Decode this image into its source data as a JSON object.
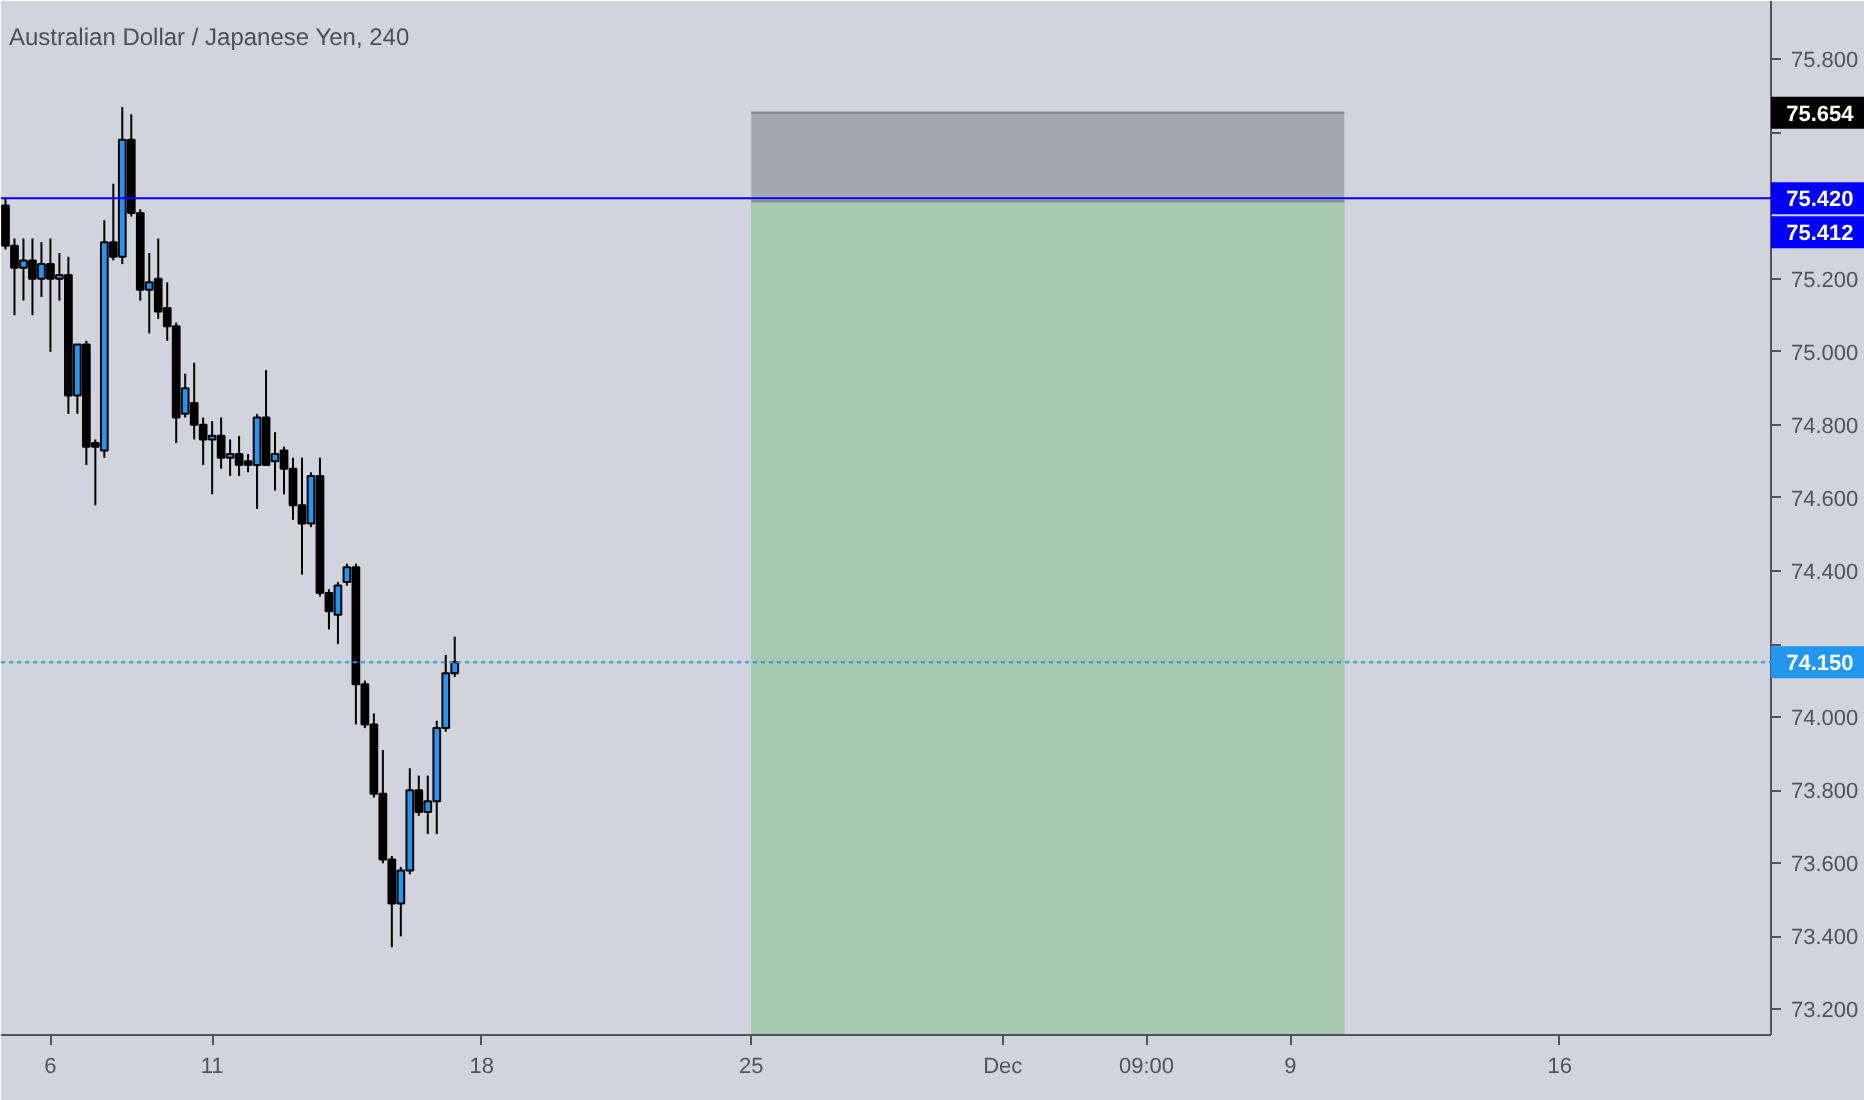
{
  "chart_data": {
    "type": "candlestick",
    "title": "Australian Dollar / Japanese Yen, 240",
    "categories": [
      null,
      null,
      null,
      null,
      null,
      "6",
      null,
      null,
      null,
      null,
      null,
      null,
      null,
      null,
      null,
      null,
      null,
      null,
      null,
      null,
      null,
      null,
      null,
      "11",
      null,
      null,
      null,
      null,
      null,
      null,
      null,
      null,
      null,
      null,
      null,
      null,
      null,
      null,
      null,
      null,
      null,
      null,
      null,
      null,
      null,
      null,
      null,
      null,
      null,
      null,
      null,
      null,
      null,
      "18",
      null,
      null,
      null,
      null,
      null,
      null,
      null,
      null,
      null,
      null,
      null,
      null,
      null,
      null,
      null,
      null,
      null,
      null,
      null,
      null,
      null,
      null,
      null,
      null,
      null,
      null,
      null,
      null,
      null,
      "25",
      null,
      null,
      null,
      null,
      null,
      null,
      null,
      null,
      null,
      null,
      null,
      null,
      null,
      null,
      null,
      null,
      null,
      null,
      null,
      null,
      null,
      null,
      null,
      null,
      null,
      null,
      null,
      "Dec",
      null,
      null,
      null,
      null,
      null,
      null,
      null,
      null,
      null,
      null,
      null,
      null,
      null,
      null,
      null,
      "09:00",
      null,
      null,
      null,
      null,
      null,
      null,
      null,
      null,
      null,
      null,
      null,
      null,
      null,
      null,
      null,
      "9",
      null,
      null,
      null,
      null,
      null,
      null,
      null,
      null,
      null,
      null,
      null,
      null,
      null,
      null,
      null,
      null,
      null,
      null,
      null,
      null,
      null,
      null,
      null,
      null,
      null,
      null,
      null,
      null,
      null,
      "16",
      null,
      null,
      null,
      null,
      null,
      null,
      null,
      null,
      null,
      null,
      null,
      null,
      null,
      null,
      null,
      null,
      null,
      null,
      null,
      null,
      null,
      null,
      null
    ],
    "ohlc": [
      [
        75.4,
        75.42,
        75.28,
        75.29
      ],
      [
        75.29,
        75.31,
        75.1,
        75.23
      ],
      [
        75.23,
        75.31,
        75.14,
        75.25
      ],
      [
        75.25,
        75.31,
        75.1,
        75.2
      ],
      [
        75.2,
        75.3,
        75.15,
        75.24
      ],
      [
        75.24,
        75.31,
        75.0,
        75.2
      ],
      [
        75.2,
        75.27,
        75.14,
        75.21
      ],
      [
        75.21,
        75.26,
        74.83,
        74.88
      ],
      [
        74.88,
        75.02,
        74.83,
        75.02
      ],
      [
        75.02,
        75.03,
        74.69,
        74.74
      ],
      [
        74.75,
        74.76,
        74.58,
        74.74
      ],
      [
        74.73,
        75.36,
        74.71,
        75.3
      ],
      [
        75.3,
        75.46,
        75.25,
        75.26
      ],
      [
        75.26,
        75.67,
        75.24,
        75.58
      ],
      [
        75.58,
        75.65,
        75.37,
        75.38
      ],
      [
        75.38,
        75.39,
        75.14,
        75.17
      ],
      [
        75.17,
        75.27,
        75.05,
        75.19
      ],
      [
        75.2,
        75.31,
        75.09,
        75.11
      ],
      [
        75.12,
        75.19,
        75.03,
        75.07
      ],
      [
        75.07,
        75.08,
        74.75,
        74.82
      ],
      [
        74.83,
        74.94,
        74.82,
        74.9
      ],
      [
        74.86,
        74.97,
        74.76,
        74.8
      ],
      [
        74.8,
        74.82,
        74.69,
        74.76
      ],
      [
        74.76,
        74.81,
        74.61,
        74.77
      ],
      [
        74.77,
        74.82,
        74.68,
        74.71
      ],
      [
        74.71,
        74.76,
        74.66,
        74.72
      ],
      [
        74.72,
        74.77,
        74.66,
        74.69
      ],
      [
        74.7,
        74.72,
        74.67,
        74.69
      ],
      [
        74.69,
        74.83,
        74.57,
        74.82
      ],
      [
        74.82,
        74.95,
        74.69,
        74.69
      ],
      [
        74.7,
        74.78,
        74.62,
        74.72
      ],
      [
        74.73,
        74.74,
        74.61,
        74.68
      ],
      [
        74.68,
        74.71,
        74.54,
        74.58
      ],
      [
        74.58,
        74.71,
        74.39,
        74.53
      ],
      [
        74.53,
        74.67,
        74.52,
        74.66
      ],
      [
        74.66,
        74.71,
        74.33,
        74.34
      ],
      [
        74.34,
        74.35,
        74.24,
        74.29
      ],
      [
        74.28,
        74.37,
        74.2,
        74.36
      ],
      [
        74.37,
        74.42,
        74.36,
        74.41
      ],
      [
        74.41,
        74.42,
        73.98,
        74.09
      ],
      [
        74.09,
        74.1,
        73.97,
        73.98
      ],
      [
        73.98,
        74.01,
        73.78,
        73.79
      ],
      [
        73.79,
        73.91,
        73.6,
        73.61
      ],
      [
        73.61,
        73.62,
        73.37,
        73.49
      ],
      [
        73.49,
        73.59,
        73.4,
        73.58
      ],
      [
        73.58,
        73.86,
        73.57,
        73.8
      ],
      [
        73.8,
        73.84,
        73.73,
        73.74
      ],
      [
        73.74,
        73.84,
        73.68,
        73.77
      ],
      [
        73.77,
        73.99,
        73.68,
        73.97
      ],
      [
        73.97,
        74.17,
        73.96,
        74.12
      ],
      [
        74.12,
        74.22,
        74.11,
        74.15
      ],
      null,
      null,
      null,
      null,
      null,
      null,
      null,
      null,
      null,
      null,
      null,
      null,
      null,
      null,
      null,
      null,
      null,
      null,
      null,
      null,
      null,
      null,
      null,
      null,
      null,
      null,
      null,
      null,
      null,
      null,
      null,
      null,
      null,
      null,
      null,
      null,
      null,
      null,
      null,
      null,
      null,
      null,
      null,
      null,
      null,
      null,
      null,
      null,
      null,
      null,
      null,
      null,
      null,
      null,
      null,
      null,
      null,
      null,
      null,
      null,
      null,
      null,
      null,
      null,
      null,
      null,
      null,
      null,
      null,
      null,
      null,
      null,
      null,
      null,
      null,
      null,
      null,
      null,
      null,
      null,
      null,
      null,
      null,
      null,
      null,
      null,
      null,
      null,
      null,
      null,
      null,
      null,
      null,
      null,
      null,
      null,
      null,
      null,
      null,
      null,
      null,
      null,
      null,
      null,
      null,
      null,
      null,
      null,
      null,
      null,
      null,
      null,
      null,
      null,
      null,
      null,
      null,
      null,
      null,
      null,
      null,
      null,
      null,
      null,
      null,
      null,
      null,
      null,
      null,
      null,
      null,
      null,
      null,
      null,
      null,
      null,
      null,
      null,
      null,
      null,
      null,
      null,
      null,
      null,
      null,
      null
    ],
    "series": [
      {
        "type": "area",
        "color": "#a4a7b0",
        "values": [
          null,
          null,
          null,
          null,
          null,
          null,
          null,
          null,
          null,
          null,
          null,
          null,
          null,
          null,
          null,
          null,
          null,
          null,
          null,
          null,
          null,
          null,
          null,
          null,
          null,
          null,
          null,
          null,
          null,
          null,
          null,
          null,
          null,
          null,
          null,
          null,
          null,
          null,
          null,
          null,
          null,
          null,
          null,
          null,
          null,
          null,
          null,
          null,
          null,
          null,
          null,
          null,
          null,
          null,
          null,
          null,
          null,
          null,
          null,
          null,
          null,
          null,
          null,
          null,
          null,
          null,
          null,
          null,
          null,
          null,
          null,
          null,
          null,
          null,
          null,
          null,
          null,
          null,
          null,
          null,
          null,
          null,
          null,
          75.654,
          75.654,
          75.654,
          75.654,
          75.654,
          75.654,
          75.654,
          75.654,
          75.654,
          75.654,
          75.654,
          75.654,
          75.654,
          75.654,
          75.654,
          75.654,
          75.654,
          75.654,
          75.654,
          75.654,
          75.654,
          75.654,
          75.654,
          75.654,
          75.654,
          75.654,
          75.654,
          75.654,
          75.654,
          75.654,
          75.654,
          75.654,
          75.654,
          75.654,
          75.654,
          75.654,
          75.654,
          75.654,
          75.654,
          75.654,
          75.654,
          75.654,
          75.654,
          75.654,
          75.654,
          75.654,
          75.654,
          75.654,
          75.654,
          75.654,
          75.654,
          75.654,
          75.654,
          75.654,
          75.654,
          75.654,
          75.654,
          75.654,
          75.654,
          75.654,
          75.654,
          75.654,
          75.654,
          75.654,
          75.654,
          75.654,
          75.654,
          null,
          null,
          null,
          null,
          null,
          null,
          null,
          null,
          null,
          null,
          null,
          null,
          null,
          null,
          null,
          null,
          null,
          null,
          null,
          null,
          null,
          null,
          null,
          null,
          null,
          null,
          null,
          null,
          null,
          null,
          null,
          null,
          null,
          null,
          null,
          null,
          null,
          null,
          null,
          null,
          null,
          null,
          null,
          null,
          null,
          null,
          null
        ]
      },
      {
        "type": "area",
        "color": "#a6c9af",
        "values": [
          null,
          null,
          null,
          null,
          null,
          null,
          null,
          null,
          null,
          null,
          null,
          null,
          null,
          null,
          null,
          null,
          null,
          null,
          null,
          null,
          null,
          null,
          null,
          null,
          null,
          null,
          null,
          null,
          null,
          null,
          null,
          null,
          null,
          null,
          null,
          null,
          null,
          null,
          null,
          null,
          null,
          null,
          null,
          null,
          null,
          null,
          null,
          null,
          null,
          null,
          null,
          null,
          null,
          null,
          null,
          null,
          null,
          null,
          null,
          null,
          null,
          null,
          null,
          null,
          null,
          null,
          null,
          null,
          null,
          null,
          null,
          null,
          null,
          null,
          null,
          null,
          null,
          null,
          null,
          null,
          null,
          null,
          null,
          75.412,
          75.412,
          75.412,
          75.412,
          75.412,
          75.412,
          75.412,
          75.412,
          75.412,
          75.412,
          75.412,
          75.412,
          75.412,
          75.412,
          75.412,
          75.412,
          75.412,
          75.412,
          75.412,
          75.412,
          75.412,
          75.412,
          75.412,
          75.412,
          75.412,
          75.412,
          75.412,
          75.412,
          75.412,
          75.412,
          75.412,
          75.412,
          75.412,
          75.412,
          75.412,
          75.412,
          75.412,
          75.412,
          75.412,
          75.412,
          75.412,
          75.412,
          75.412,
          75.412,
          75.412,
          75.412,
          75.412,
          75.412,
          75.412,
          75.412,
          75.412,
          75.412,
          75.412,
          75.412,
          75.412,
          75.412,
          75.412,
          75.412,
          75.412,
          75.412,
          75.412,
          75.412,
          75.412,
          75.412,
          75.412,
          75.412,
          75.412,
          null,
          null,
          null,
          null,
          null,
          null,
          null,
          null,
          null,
          null,
          null,
          null,
          null,
          null,
          null,
          null,
          null,
          null,
          null,
          null,
          null,
          null,
          null,
          null,
          null,
          null,
          null,
          null,
          null,
          null,
          null,
          null,
          null,
          null,
          null,
          null,
          null,
          null,
          null,
          null,
          null,
          null,
          null,
          null,
          null,
          null,
          null
        ]
      }
    ],
    "ylim": [
      73.13,
      75.96
    ],
    "yticks": [
      {
        "value": 73.2,
        "label": "73.200"
      },
      {
        "value": 73.4,
        "label": "73.400"
      },
      {
        "value": 73.6,
        "label": "73.600"
      },
      {
        "value": 73.8,
        "label": "73.800"
      },
      {
        "value": 74.0,
        "label": "74.000"
      },
      {
        "value": 74.2,
        "label": null
      },
      {
        "value": 74.4,
        "label": "74.400"
      },
      {
        "value": 74.6,
        "label": "74.600"
      },
      {
        "value": 74.8,
        "label": "74.800"
      },
      {
        "value": 75.0,
        "label": "75.000"
      },
      {
        "value": 75.2,
        "label": "75.200"
      },
      {
        "value": 75.4,
        "label": null
      },
      {
        "value": 75.6,
        "label": null
      },
      {
        "value": 75.8,
        "label": "75.800"
      }
    ],
    "ref_lines": [
      {
        "axis": "y",
        "value": 75.42,
        "label": "75.420",
        "color": "#0000ff",
        "line_style": "solid"
      },
      {
        "axis": "y",
        "value": 74.15,
        "label": "74.150",
        "color": "#2196f3",
        "line_style": "dotted"
      }
    ],
    "annotations": [
      "75.654",
      "75.412"
    ],
    "grid": false
  }
}
